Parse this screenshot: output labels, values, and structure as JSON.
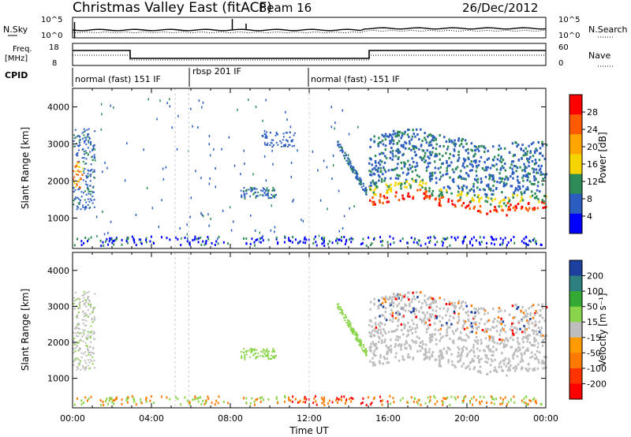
{
  "header": {
    "station": "Christmas Valley East (fitACF)",
    "beam": "Beam 16",
    "date": "26/Dec/2012"
  },
  "panels": {
    "noise": {
      "left_label": "N.Sky",
      "left_ticks": [
        "10^5",
        "10^0"
      ],
      "right_ticks": [
        "10^5",
        "10^0"
      ],
      "right_label": "N.Search"
    },
    "freq": {
      "left_label_1": "Freq.",
      "left_label_2": "[MHz]",
      "left_ticks": [
        "18",
        "8"
      ],
      "right_ticks": [
        "60",
        "0"
      ],
      "right_label": "Nave"
    },
    "cpid": {
      "label": "CPID",
      "modes": [
        {
          "label": "normal (fast) 151 IF",
          "start_hour": 0
        },
        {
          "label": "rbsp 201 IF",
          "start_hour": 6
        },
        {
          "label": "normal (fast) -151 IF",
          "start_hour": 12
        }
      ]
    }
  },
  "chart_data": [
    {
      "type": "heatmap",
      "name": "power",
      "ylabel": "Slant Range [km]",
      "yticks": [
        "4000",
        "3000",
        "2000",
        "1000"
      ],
      "ylim": [
        180,
        4500
      ],
      "xlim": [
        0,
        24
      ],
      "colorbar": {
        "label": "Power [dB]",
        "ticks": [
          "28",
          "24",
          "20",
          "16",
          "12",
          "8",
          "4"
        ],
        "colors": [
          "#ff0000",
          "#ff5a00",
          "#ffa500",
          "#f5d400",
          "#2e8b57",
          "#2b5cbf",
          "#0000ff"
        ]
      }
    },
    {
      "type": "heatmap",
      "name": "velocity",
      "ylabel": "Slant Range [km]",
      "yticks": [
        "4000",
        "3000",
        "2000",
        "1000"
      ],
      "ylim": [
        180,
        4500
      ],
      "xlim": [
        0,
        24
      ],
      "xlabel": "Time UT",
      "xticks": [
        "00:00",
        "04:00",
        "08:00",
        "12:00",
        "16:00",
        "20:00",
        "00:00"
      ],
      "colorbar": {
        "label": "Velocity [m s⁻¹]",
        "ticks": [
          "200",
          "100",
          "50",
          "15",
          "-15",
          "-50",
          "-100",
          "-200"
        ],
        "colors": [
          "#1d3fa0",
          "#2e7f7f",
          "#33aa33",
          "#8ad44a",
          "#bdbdbd",
          "#ff9a00",
          "#ff7a00",
          "#ff3300",
          "#ff0000"
        ]
      }
    }
  ]
}
